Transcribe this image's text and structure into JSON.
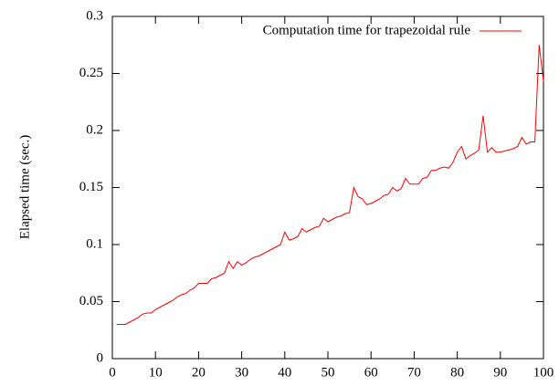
{
  "chart_data": {
    "type": "line",
    "y_label": "Elapsed time (sec.)",
    "x": [
      1,
      2,
      3,
      4,
      5,
      6,
      7,
      8,
      9,
      10,
      11,
      12,
      13,
      14,
      15,
      16,
      17,
      18,
      19,
      20,
      21,
      22,
      23,
      24,
      25,
      26,
      27,
      28,
      29,
      30,
      31,
      32,
      33,
      34,
      35,
      36,
      37,
      38,
      39,
      40,
      41,
      42,
      43,
      44,
      45,
      46,
      47,
      48,
      49,
      50,
      51,
      52,
      53,
      54,
      55,
      56,
      57,
      58,
      59,
      60,
      61,
      62,
      63,
      64,
      65,
      66,
      67,
      68,
      69,
      70,
      71,
      72,
      73,
      74,
      75,
      76,
      77,
      78,
      79,
      80,
      81,
      82,
      83,
      84,
      85,
      86,
      87,
      88,
      89,
      90,
      91,
      92,
      93,
      94,
      95,
      96,
      97,
      98,
      99,
      100
    ],
    "series": [
      {
        "name": "Computation time for trapezoidal rule",
        "color": "#ff0000",
        "values": [
          0.03,
          0.03,
          0.03,
          0.032,
          0.034,
          0.036,
          0.039,
          0.04,
          0.04,
          0.043,
          0.045,
          0.047,
          0.049,
          0.051,
          0.054,
          0.056,
          0.057,
          0.06,
          0.062,
          0.066,
          0.066,
          0.066,
          0.07,
          0.071,
          0.073,
          0.075,
          0.085,
          0.079,
          0.085,
          0.082,
          0.084,
          0.087,
          0.089,
          0.09,
          0.092,
          0.094,
          0.096,
          0.098,
          0.1,
          0.111,
          0.104,
          0.105,
          0.107,
          0.114,
          0.111,
          0.113,
          0.115,
          0.116,
          0.123,
          0.12,
          0.122,
          0.124,
          0.125,
          0.127,
          0.128,
          0.15,
          0.142,
          0.14,
          0.135,
          0.136,
          0.138,
          0.14,
          0.143,
          0.144,
          0.15,
          0.147,
          0.149,
          0.158,
          0.153,
          0.153,
          0.153,
          0.158,
          0.159,
          0.165,
          0.165,
          0.167,
          0.168,
          0.167,
          0.172,
          0.181,
          0.186,
          0.175,
          0.178,
          0.18,
          0.183,
          0.213,
          0.181,
          0.185,
          0.181,
          0.181,
          0.182,
          0.183,
          0.184,
          0.186,
          0.194,
          0.188,
          0.19,
          0.19,
          0.275,
          0.243
        ]
      }
    ],
    "xlim": [
      0,
      100
    ],
    "xticks": [
      0,
      10,
      20,
      30,
      40,
      50,
      60,
      70,
      80,
      90,
      100
    ],
    "ylim": [
      0,
      0.3
    ],
    "yticks": [
      0,
      0.05,
      0.1,
      0.15,
      0.2,
      0.25,
      0.3
    ],
    "legend": "top-right",
    "grid": false
  }
}
